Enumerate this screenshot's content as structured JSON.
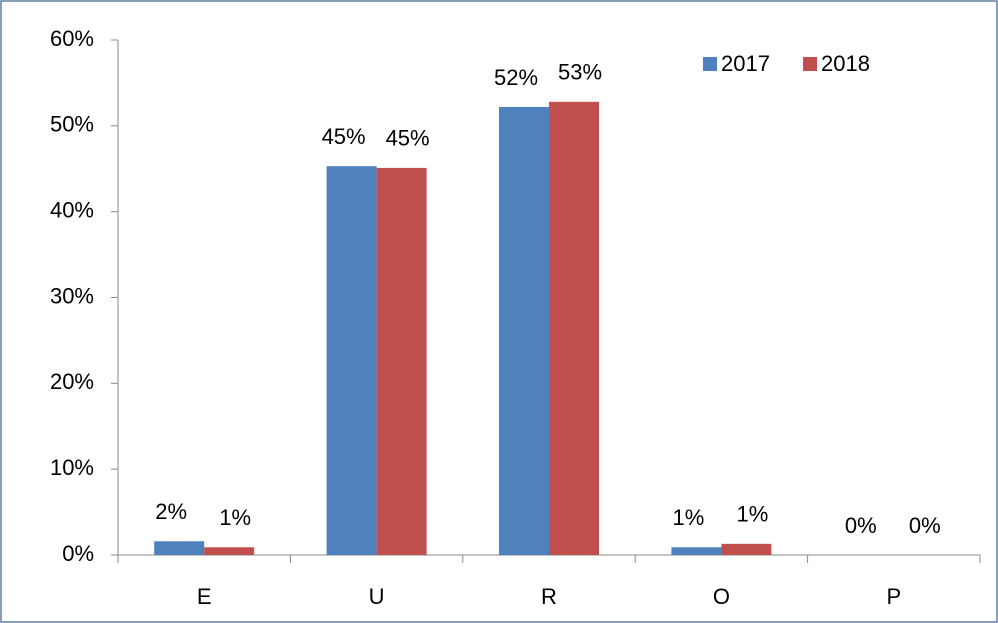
{
  "chart_data": {
    "type": "bar",
    "categories": [
      "E",
      "U",
      "R",
      "O",
      "P"
    ],
    "series": [
      {
        "name": "2017",
        "color": "#4f81bd",
        "values": [
          1.6,
          45.3,
          52.2,
          0.9,
          0
        ],
        "value_labels": [
          "2%",
          "45%",
          "52%",
          "1%",
          "0%"
        ]
      },
      {
        "name": "2018",
        "color": "#c0504d",
        "values": [
          0.9,
          45.1,
          52.8,
          1.3,
          0
        ],
        "value_labels": [
          "1%",
          "45%",
          "53%",
          "1%",
          "0%"
        ]
      }
    ],
    "ylim": [
      0,
      60
    ],
    "yticks": [
      {
        "value": 0,
        "label": "0%"
      },
      {
        "value": 10,
        "label": "10%"
      },
      {
        "value": 20,
        "label": "20%"
      },
      {
        "value": 30,
        "label": "30%"
      },
      {
        "value": 40,
        "label": "40%"
      },
      {
        "value": 50,
        "label": "50%"
      },
      {
        "value": 60,
        "label": "60%"
      }
    ],
    "legend": "top-right"
  }
}
